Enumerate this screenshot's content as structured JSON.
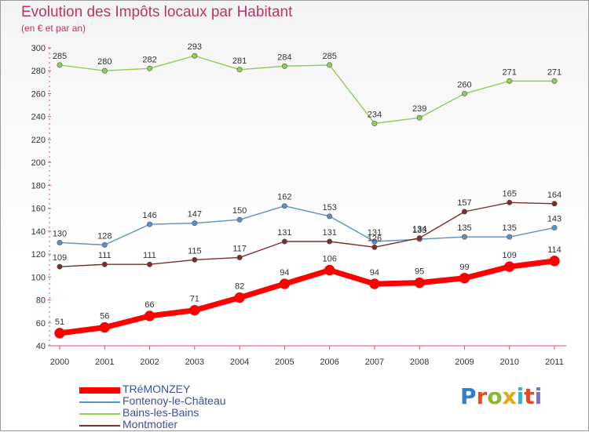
{
  "title": "Evolution des Impôts locaux par Habitant",
  "subtitle": "(en € et par an)",
  "logo": {
    "text": "Proxiti",
    "colors": [
      "#2f7fd0",
      "#e0501a",
      "#8ab830",
      "#e6a417",
      "#3cb0c8",
      "#d94c2b",
      "#7a6fc8"
    ]
  },
  "chart_data": {
    "type": "line",
    "title": "Evolution des Impôts locaux par Habitant",
    "subtitle": "(en € et par an)",
    "xlabel": "",
    "ylabel": "",
    "x": [
      "2000",
      "2001",
      "2002",
      "2003",
      "2004",
      "2005",
      "2006",
      "2007",
      "2008",
      "2009",
      "2010",
      "2011"
    ],
    "ylim": [
      40,
      300
    ],
    "yticks": [
      40,
      60,
      80,
      100,
      120,
      140,
      160,
      180,
      200,
      220,
      240,
      260,
      280,
      300
    ],
    "grid": false,
    "legend_position": "bottom-left",
    "series": [
      {
        "name": "TRéMONZEY",
        "color": "#ff0000",
        "values": [
          51,
          56,
          66,
          71,
          82,
          94,
          106,
          94,
          95,
          99,
          109,
          114
        ]
      },
      {
        "name": "Fontenoy-le-Château",
        "color": "#5d8fc9",
        "values": [
          130,
          128,
          146,
          147,
          150,
          162,
          153,
          131,
          133,
          135,
          135,
          143
        ]
      },
      {
        "name": "Bains-les-Bains",
        "color": "#8fcc5a",
        "values": [
          285,
          280,
          282,
          293,
          281,
          284,
          285,
          234,
          239,
          260,
          271,
          271
        ]
      },
      {
        "name": "Montmotier",
        "color": "#7a2e2e",
        "values": [
          109,
          111,
          111,
          115,
          117,
          131,
          131,
          126,
          134,
          157,
          165,
          164
        ]
      }
    ]
  }
}
